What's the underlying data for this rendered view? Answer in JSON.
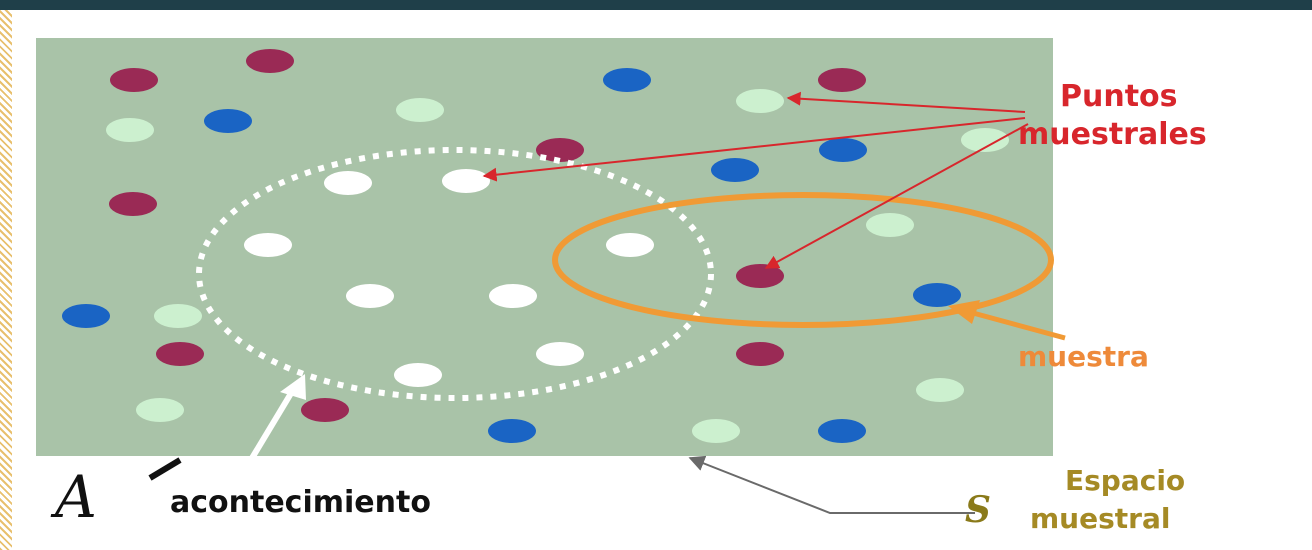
{
  "labels": {
    "sample_points_line1": "Puntos",
    "sample_points_line2": "muestrales",
    "sample": "muestra",
    "event_symbol": "A",
    "event": "acontecimiento",
    "sample_space_symbol": "S",
    "sample_space_line1": "Espacio",
    "sample_space_line2": "muestral"
  },
  "colors": {
    "space_background": "#a9c3a8",
    "point_maroon": "#9a2a55",
    "point_blue": "#1a64c4",
    "point_mint": "#ccf0cf",
    "point_white": "#ffffff",
    "event_outline": "#ffffff",
    "sample_outline": "#f09a35",
    "callout_line": "#d8262c",
    "top_bar": "#1f3f49"
  },
  "legend": {
    "point_colors": [
      "maroon",
      "blue",
      "mint",
      "white"
    ],
    "event_ellipse_style": "dotted white",
    "sample_ellipse_style": "solid orange"
  }
}
